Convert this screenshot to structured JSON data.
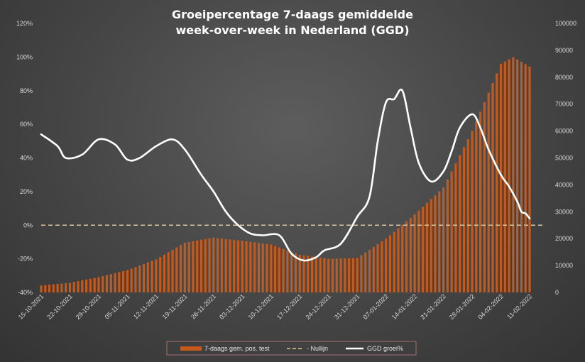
{
  "chart_data": {
    "type": "bar",
    "title": [
      "Groeipercentage 7-daags gemiddelde",
      "week-over-week in Nederland (GGD)"
    ],
    "x_tick_labels": [
      "15-10-2021",
      "22-10-2021",
      "29-10-2021",
      "05-11-2021",
      "12-11-2021",
      "19-11-2021",
      "26-11-2021",
      "03-12-2021",
      "10-12-2021",
      "17-12-2021",
      "24-12-2021",
      "31-12-2021",
      "07-01-2022",
      "14-01-2022",
      "21-01-2022",
      "28-01-2022",
      "04-02-2022",
      "11-02-2022"
    ],
    "x_start": "15-10-2021",
    "x_end": "11-02-2022",
    "y_left": {
      "min": -0.4,
      "max": 1.2,
      "step": 0.2,
      "tick_labels": [
        "-40%",
        "-20%",
        "0%",
        "20%",
        "40%",
        "60%",
        "80%",
        "100%",
        "120%"
      ]
    },
    "y_right": {
      "min": 0,
      "max": 100000,
      "step": 10000,
      "tick_labels": [
        "0",
        "10000",
        "20000",
        "30000",
        "40000",
        "50000",
        "60000",
        "70000",
        "80000",
        "90000",
        "100000"
      ]
    },
    "series": [
      {
        "name": "7-daags gem. pos. test",
        "type": "bar",
        "axis": "right",
        "color": "#c55a1c",
        "anchors": [
          [
            "15-10-2021",
            2600
          ],
          [
            "22-10-2021",
            3600
          ],
          [
            "29-10-2021",
            5700
          ],
          [
            "05-11-2021",
            8300
          ],
          [
            "12-11-2021",
            12300
          ],
          [
            "19-11-2021",
            18500
          ],
          [
            "26-11-2021",
            20400
          ],
          [
            "03-12-2021",
            19200
          ],
          [
            "10-12-2021",
            17800
          ],
          [
            "17-12-2021",
            14000
          ],
          [
            "24-12-2021",
            12500
          ],
          [
            "31-12-2021",
            12800
          ],
          [
            "07-01-2022",
            20000
          ],
          [
            "14-01-2022",
            29000
          ],
          [
            "21-01-2022",
            39000
          ],
          [
            "28-01-2022",
            60000
          ],
          [
            "04-02-2022",
            85000
          ],
          [
            "07-02-2022",
            87500
          ],
          [
            "11-02-2022",
            84000
          ]
        ]
      },
      {
        "name": "- Nullijn",
        "type": "line",
        "axis": "left",
        "dashed": true,
        "color": "#d9c7a0",
        "value": 0
      },
      {
        "name": "GGD groei%",
        "type": "line",
        "axis": "left",
        "color": "#ffffff",
        "anchors": [
          [
            "15-10-2021",
            0.54
          ],
          [
            "19-10-2021",
            0.47
          ],
          [
            "21-10-2021",
            0.4
          ],
          [
            "25-10-2021",
            0.42
          ],
          [
            "29-10-2021",
            0.51
          ],
          [
            "02-11-2021",
            0.48
          ],
          [
            "05-11-2021",
            0.39
          ],
          [
            "08-11-2021",
            0.4
          ],
          [
            "12-11-2021",
            0.47
          ],
          [
            "16-11-2021",
            0.51
          ],
          [
            "19-11-2021",
            0.45
          ],
          [
            "23-11-2021",
            0.3
          ],
          [
            "26-11-2021",
            0.2
          ],
          [
            "29-11-2021",
            0.08
          ],
          [
            "02-12-2021",
            0.0
          ],
          [
            "05-12-2021",
            -0.05
          ],
          [
            "08-12-2021",
            -0.06
          ],
          [
            "12-12-2021",
            -0.06
          ],
          [
            "15-12-2021",
            -0.17
          ],
          [
            "18-12-2021",
            -0.21
          ],
          [
            "21-12-2021",
            -0.19
          ],
          [
            "23-12-2021",
            -0.15
          ],
          [
            "27-12-2021",
            -0.11
          ],
          [
            "31-12-2021",
            0.05
          ],
          [
            "03-01-2022",
            0.17
          ],
          [
            "05-01-2022",
            0.5
          ],
          [
            "07-01-2022",
            0.73
          ],
          [
            "09-01-2022",
            0.75
          ],
          [
            "11-01-2022",
            0.8
          ],
          [
            "13-01-2022",
            0.58
          ],
          [
            "15-01-2022",
            0.37
          ],
          [
            "18-01-2022",
            0.26
          ],
          [
            "21-01-2022",
            0.32
          ],
          [
            "23-01-2022",
            0.44
          ],
          [
            "25-01-2022",
            0.58
          ],
          [
            "28-01-2022",
            0.66
          ],
          [
            "30-01-2022",
            0.58
          ],
          [
            "01-02-2022",
            0.45
          ],
          [
            "04-02-2022",
            0.3
          ],
          [
            "06-02-2022",
            0.23
          ],
          [
            "08-02-2022",
            0.14
          ],
          [
            "09-02-2022",
            0.08
          ],
          [
            "10-02-2022",
            0.07
          ],
          [
            "11-02-2022",
            0.04
          ]
        ]
      }
    ],
    "legend_position": "bottom",
    "grid": false
  }
}
